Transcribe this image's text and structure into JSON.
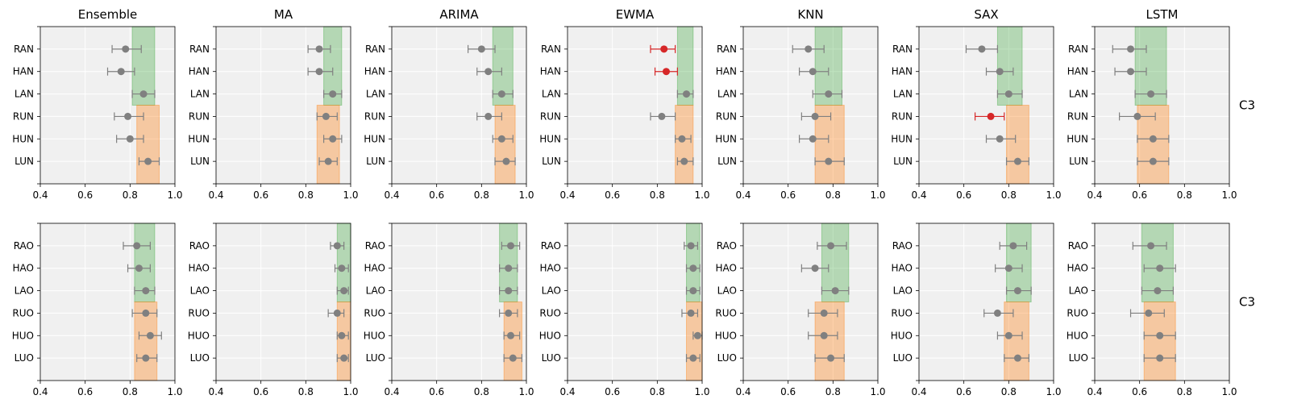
{
  "colors": {
    "panel_bg": "#f0f0f0",
    "grid": "#ffffff",
    "green_band": "#2ca02c",
    "orange_band": "#ff7f0e",
    "point_default": "#808080",
    "point_highlight": "#d62728"
  },
  "models": [
    "Ensemble",
    "MA",
    "ARIMA",
    "EWMA",
    "KNN",
    "SAX",
    "LSTM"
  ],
  "row_labels": [
    "C3",
    "C3"
  ],
  "x_ticks": [
    "0.4",
    "0.6",
    "0.8",
    "1.0"
  ],
  "chart_data": {
    "type": "scatter",
    "subtype": "interval-dot-plot with shaded bands",
    "xlim": [
      0.4,
      1.0
    ],
    "grid": true,
    "rows": [
      {
        "label": "C3",
        "categories": [
          "RAN",
          "HAN",
          "LAN",
          "RUN",
          "HUN",
          "LUN"
        ],
        "panels": [
          {
            "title": "Ensemble",
            "green_band": [
              0.81,
              0.91
            ],
            "orange_band": [
              0.83,
              0.93
            ],
            "points": [
              {
                "value": 0.78,
                "low": 0.72,
                "high": 0.85,
                "highlight": false
              },
              {
                "value": 0.76,
                "low": 0.7,
                "high": 0.82,
                "highlight": false
              },
              {
                "value": 0.86,
                "low": 0.81,
                "high": 0.91,
                "highlight": false
              },
              {
                "value": 0.79,
                "low": 0.73,
                "high": 0.86,
                "highlight": false
              },
              {
                "value": 0.8,
                "low": 0.74,
                "high": 0.86,
                "highlight": false
              },
              {
                "value": 0.88,
                "low": 0.84,
                "high": 0.93,
                "highlight": false
              }
            ]
          },
          {
            "title": "MA",
            "green_band": [
              0.88,
              0.96
            ],
            "orange_band": [
              0.85,
              0.95
            ],
            "points": [
              {
                "value": 0.86,
                "low": 0.81,
                "high": 0.91,
                "highlight": false
              },
              {
                "value": 0.86,
                "low": 0.81,
                "high": 0.92,
                "highlight": false
              },
              {
                "value": 0.92,
                "low": 0.88,
                "high": 0.96,
                "highlight": false
              },
              {
                "value": 0.89,
                "low": 0.85,
                "high": 0.94,
                "highlight": false
              },
              {
                "value": 0.92,
                "low": 0.88,
                "high": 0.96,
                "highlight": false
              },
              {
                "value": 0.9,
                "low": 0.86,
                "high": 0.94,
                "highlight": false
              }
            ]
          },
          {
            "title": "ARIMA",
            "green_band": [
              0.85,
              0.94
            ],
            "orange_band": [
              0.86,
              0.95
            ],
            "points": [
              {
                "value": 0.8,
                "low": 0.74,
                "high": 0.86,
                "highlight": false
              },
              {
                "value": 0.83,
                "low": 0.78,
                "high": 0.89,
                "highlight": false
              },
              {
                "value": 0.89,
                "low": 0.85,
                "high": 0.94,
                "highlight": false
              },
              {
                "value": 0.83,
                "low": 0.78,
                "high": 0.89,
                "highlight": false
              },
              {
                "value": 0.89,
                "low": 0.85,
                "high": 0.94,
                "highlight": false
              },
              {
                "value": 0.91,
                "low": 0.86,
                "high": 0.95,
                "highlight": false
              }
            ]
          },
          {
            "title": "EWMA",
            "green_band": [
              0.89,
              0.96
            ],
            "orange_band": [
              0.88,
              0.96
            ],
            "points": [
              {
                "value": 0.83,
                "low": 0.77,
                "high": 0.88,
                "highlight": true
              },
              {
                "value": 0.84,
                "low": 0.79,
                "high": 0.89,
                "highlight": true
              },
              {
                "value": 0.93,
                "low": 0.89,
                "high": 0.96,
                "highlight": false
              },
              {
                "value": 0.82,
                "low": 0.77,
                "high": 0.88,
                "highlight": false
              },
              {
                "value": 0.91,
                "low": 0.88,
                "high": 0.95,
                "highlight": false
              },
              {
                "value": 0.92,
                "low": 0.89,
                "high": 0.96,
                "highlight": false
              }
            ]
          },
          {
            "title": "KNN",
            "green_band": [
              0.72,
              0.84
            ],
            "orange_band": [
              0.72,
              0.85
            ],
            "points": [
              {
                "value": 0.69,
                "low": 0.62,
                "high": 0.76,
                "highlight": false
              },
              {
                "value": 0.71,
                "low": 0.65,
                "high": 0.78,
                "highlight": false
              },
              {
                "value": 0.78,
                "low": 0.71,
                "high": 0.84,
                "highlight": false
              },
              {
                "value": 0.72,
                "low": 0.66,
                "high": 0.79,
                "highlight": false
              },
              {
                "value": 0.71,
                "low": 0.65,
                "high": 0.78,
                "highlight": false
              },
              {
                "value": 0.78,
                "low": 0.72,
                "high": 0.85,
                "highlight": false
              }
            ]
          },
          {
            "title": "SAX",
            "green_band": [
              0.75,
              0.86
            ],
            "orange_band": [
              0.79,
              0.89
            ],
            "points": [
              {
                "value": 0.68,
                "low": 0.61,
                "high": 0.75,
                "highlight": false
              },
              {
                "value": 0.76,
                "low": 0.7,
                "high": 0.82,
                "highlight": false
              },
              {
                "value": 0.8,
                "low": 0.75,
                "high": 0.86,
                "highlight": false
              },
              {
                "value": 0.72,
                "low": 0.65,
                "high": 0.78,
                "highlight": true
              },
              {
                "value": 0.76,
                "low": 0.7,
                "high": 0.83,
                "highlight": false
              },
              {
                "value": 0.84,
                "low": 0.79,
                "high": 0.89,
                "highlight": false
              }
            ]
          },
          {
            "title": "LSTM",
            "green_band": [
              0.58,
              0.72
            ],
            "orange_band": [
              0.59,
              0.73
            ],
            "points": [
              {
                "value": 0.56,
                "low": 0.48,
                "high": 0.63,
                "highlight": false
              },
              {
                "value": 0.56,
                "low": 0.49,
                "high": 0.63,
                "highlight": false
              },
              {
                "value": 0.65,
                "low": 0.58,
                "high": 0.72,
                "highlight": false
              },
              {
                "value": 0.59,
                "low": 0.51,
                "high": 0.67,
                "highlight": false
              },
              {
                "value": 0.66,
                "low": 0.59,
                "high": 0.73,
                "highlight": false
              },
              {
                "value": 0.66,
                "low": 0.59,
                "high": 0.73,
                "highlight": false
              }
            ]
          }
        ]
      },
      {
        "label": "C3",
        "categories": [
          "RAO",
          "HAO",
          "LAO",
          "RUO",
          "HUO",
          "LUO"
        ],
        "panels": [
          {
            "title": "Ensemble",
            "green_band": [
              0.82,
              0.91
            ],
            "orange_band": [
              0.82,
              0.92
            ],
            "points": [
              {
                "value": 0.83,
                "low": 0.77,
                "high": 0.89,
                "highlight": false
              },
              {
                "value": 0.84,
                "low": 0.79,
                "high": 0.89,
                "highlight": false
              },
              {
                "value": 0.87,
                "low": 0.82,
                "high": 0.91,
                "highlight": false
              },
              {
                "value": 0.87,
                "low": 0.81,
                "high": 0.92,
                "highlight": false
              },
              {
                "value": 0.89,
                "low": 0.84,
                "high": 0.94,
                "highlight": false
              },
              {
                "value": 0.87,
                "low": 0.83,
                "high": 0.92,
                "highlight": false
              }
            ]
          },
          {
            "title": "MA",
            "green_band": [
              0.94,
              1.0
            ],
            "orange_band": [
              0.94,
              1.0
            ],
            "points": [
              {
                "value": 0.94,
                "low": 0.91,
                "high": 0.97,
                "highlight": false
              },
              {
                "value": 0.96,
                "low": 0.93,
                "high": 0.99,
                "highlight": false
              },
              {
                "value": 0.97,
                "low": 0.94,
                "high": 0.99,
                "highlight": false
              },
              {
                "value": 0.94,
                "low": 0.9,
                "high": 0.97,
                "highlight": false
              },
              {
                "value": 0.96,
                "low": 0.94,
                "high": 0.99,
                "highlight": false
              },
              {
                "value": 0.97,
                "low": 0.94,
                "high": 0.99,
                "highlight": false
              }
            ]
          },
          {
            "title": "ARIMA",
            "green_band": [
              0.88,
              0.96
            ],
            "orange_band": [
              0.9,
              0.98
            ],
            "points": [
              {
                "value": 0.93,
                "low": 0.89,
                "high": 0.97,
                "highlight": false
              },
              {
                "value": 0.92,
                "low": 0.88,
                "high": 0.96,
                "highlight": false
              },
              {
                "value": 0.92,
                "low": 0.88,
                "high": 0.96,
                "highlight": false
              },
              {
                "value": 0.92,
                "low": 0.88,
                "high": 0.96,
                "highlight": false
              },
              {
                "value": 0.93,
                "low": 0.9,
                "high": 0.97,
                "highlight": false
              },
              {
                "value": 0.94,
                "low": 0.9,
                "high": 0.98,
                "highlight": false
              }
            ]
          },
          {
            "title": "EWMA",
            "green_band": [
              0.93,
              0.99
            ],
            "orange_band": [
              0.93,
              1.0
            ],
            "points": [
              {
                "value": 0.95,
                "low": 0.92,
                "high": 0.98,
                "highlight": false
              },
              {
                "value": 0.96,
                "low": 0.93,
                "high": 0.99,
                "highlight": false
              },
              {
                "value": 0.96,
                "low": 0.93,
                "high": 0.99,
                "highlight": false
              },
              {
                "value": 0.95,
                "low": 0.91,
                "high": 0.98,
                "highlight": false
              },
              {
                "value": 0.98,
                "low": 0.96,
                "high": 1.0,
                "highlight": false
              },
              {
                "value": 0.96,
                "low": 0.93,
                "high": 0.99,
                "highlight": false
              }
            ]
          },
          {
            "title": "KNN",
            "green_band": [
              0.75,
              0.87
            ],
            "orange_band": [
              0.72,
              0.85
            ],
            "points": [
              {
                "value": 0.79,
                "low": 0.73,
                "high": 0.86,
                "highlight": false
              },
              {
                "value": 0.72,
                "low": 0.66,
                "high": 0.78,
                "highlight": false
              },
              {
                "value": 0.81,
                "low": 0.75,
                "high": 0.87,
                "highlight": false
              },
              {
                "value": 0.76,
                "low": 0.69,
                "high": 0.82,
                "highlight": false
              },
              {
                "value": 0.76,
                "low": 0.69,
                "high": 0.82,
                "highlight": false
              },
              {
                "value": 0.79,
                "low": 0.72,
                "high": 0.85,
                "highlight": false
              }
            ]
          },
          {
            "title": "SAX",
            "green_band": [
              0.79,
              0.9
            ],
            "orange_band": [
              0.78,
              0.89
            ],
            "points": [
              {
                "value": 0.82,
                "low": 0.76,
                "high": 0.88,
                "highlight": false
              },
              {
                "value": 0.8,
                "low": 0.74,
                "high": 0.86,
                "highlight": false
              },
              {
                "value": 0.84,
                "low": 0.79,
                "high": 0.9,
                "highlight": false
              },
              {
                "value": 0.75,
                "low": 0.69,
                "high": 0.82,
                "highlight": false
              },
              {
                "value": 0.8,
                "low": 0.75,
                "high": 0.86,
                "highlight": false
              },
              {
                "value": 0.84,
                "low": 0.78,
                "high": 0.89,
                "highlight": false
              }
            ]
          },
          {
            "title": "LSTM",
            "green_band": [
              0.61,
              0.75
            ],
            "orange_band": [
              0.62,
              0.76
            ],
            "points": [
              {
                "value": 0.65,
                "low": 0.57,
                "high": 0.72,
                "highlight": false
              },
              {
                "value": 0.69,
                "low": 0.62,
                "high": 0.76,
                "highlight": false
              },
              {
                "value": 0.68,
                "low": 0.61,
                "high": 0.75,
                "highlight": false
              },
              {
                "value": 0.64,
                "low": 0.56,
                "high": 0.71,
                "highlight": false
              },
              {
                "value": 0.69,
                "low": 0.62,
                "high": 0.76,
                "highlight": false
              },
              {
                "value": 0.69,
                "low": 0.62,
                "high": 0.76,
                "highlight": false
              }
            ]
          }
        ]
      }
    ]
  }
}
